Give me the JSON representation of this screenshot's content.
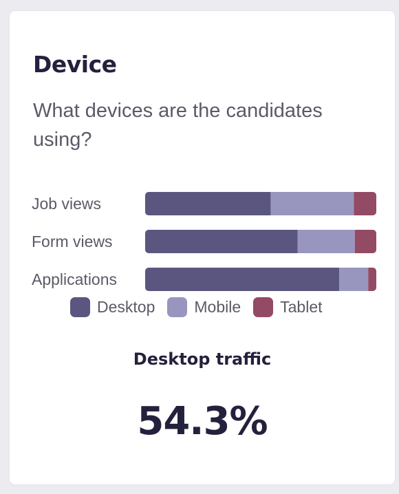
{
  "card": {
    "title": "Device",
    "subtitle": "What devices are the candidates using?"
  },
  "chart_data": {
    "type": "bar",
    "orientation": "horizontal",
    "stacked": true,
    "normalized": true,
    "categories": [
      "Job views",
      "Form views",
      "Applications"
    ],
    "series": [
      {
        "name": "Desktop",
        "color": "#5a5680",
        "values": [
          54.3,
          66.0,
          84.0
        ]
      },
      {
        "name": "Mobile",
        "color": "#9896be",
        "values": [
          36.0,
          24.7,
          12.5
        ]
      },
      {
        "name": "Tablet",
        "color": "#934a65",
        "values": [
          9.7,
          9.3,
          3.5
        ]
      }
    ],
    "xlim": [
      0,
      100
    ],
    "grid": false,
    "legend": "bottom"
  },
  "legend": [
    {
      "label": "Desktop",
      "color": "#5a5680"
    },
    {
      "label": "Mobile",
      "color": "#9896be"
    },
    {
      "label": "Tablet",
      "color": "#934a65"
    }
  ],
  "metric": {
    "label": "Desktop traffic",
    "value": "54.3%"
  }
}
